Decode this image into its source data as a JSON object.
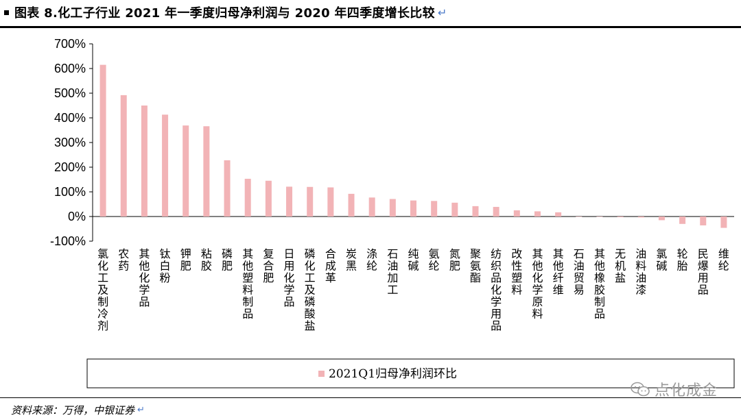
{
  "header": {
    "title": "图表 8.化工子行业 2021 年一季度归母净利润与 2020 年四季度增长比较",
    "return_mark": "↵"
  },
  "footer": {
    "source": "资料来源：万得，中银证券",
    "return_mark": "↵"
  },
  "watermark": {
    "text": "点化成金",
    "icon": "wechat-icon"
  },
  "colors": {
    "bar": "#f2b3b6",
    "axis": "#000000"
  },
  "chart_data": {
    "type": "bar",
    "categories": [
      "氯化工及制冷剂",
      "农药",
      "其他化学品",
      "钛白粉",
      "钾肥",
      "粘胶",
      "磷肥",
      "其他塑料制品",
      "复合肥",
      "日用化学品",
      "磷化工及磷酸盐",
      "合成革",
      "炭黑",
      "涤纶",
      "石油加工",
      "纯碱",
      "氨纶",
      "氮肥",
      "聚氨酯",
      "纺织品化学用品",
      "改性塑料",
      "其他化学原料",
      "其他纤维",
      "石油贸易",
      "其他橡胶制品",
      "无机盐",
      "油料油漆",
      "氯碱",
      "轮胎",
      "民爆用品",
      "维纶"
    ],
    "series": [
      {
        "name": "2021Q1归母净利润环比",
        "values": [
          615,
          492,
          450,
          413,
          369,
          366,
          228,
          153,
          145,
          121,
          120,
          118,
          92,
          77,
          71,
          65,
          63,
          56,
          42,
          39,
          25,
          21,
          17,
          0,
          -1,
          -3,
          -4,
          -15,
          -30,
          -36,
          -46
        ]
      }
    ],
    "y_tick_labels": [
      "700%",
      "600%",
      "500%",
      "400%",
      "300%",
      "200%",
      "100%",
      "0%",
      "-100%"
    ],
    "ylim": [
      -100,
      700
    ],
    "y_unit": "%",
    "grid": false,
    "legend_position": "bottom"
  }
}
